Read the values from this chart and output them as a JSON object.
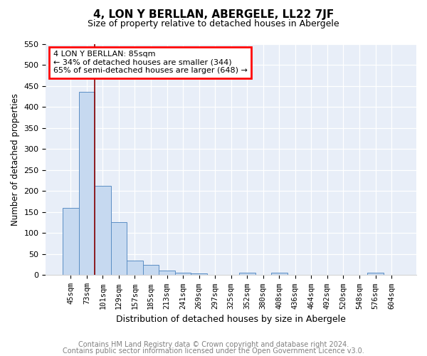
{
  "title": "4, LON Y BERLLAN, ABERGELE, LL22 7JF",
  "subtitle": "Size of property relative to detached houses in Abergele",
  "xlabel": "Distribution of detached houses by size in Abergele",
  "ylabel": "Number of detached properties",
  "categories": [
    "45sqm",
    "73sqm",
    "101sqm",
    "129sqm",
    "157sqm",
    "185sqm",
    "213sqm",
    "241sqm",
    "269sqm",
    "297sqm",
    "325sqm",
    "352sqm",
    "380sqm",
    "408sqm",
    "436sqm",
    "464sqm",
    "492sqm",
    "520sqm",
    "548sqm",
    "576sqm",
    "604sqm"
  ],
  "values": [
    160,
    435,
    213,
    126,
    35,
    25,
    11,
    5,
    4,
    0,
    0,
    5,
    0,
    5,
    0,
    0,
    0,
    0,
    0,
    5,
    0
  ],
  "bar_color": "#c6d9f0",
  "bar_edge_color": "#5b8ec4",
  "red_line_x": 1.5,
  "annotation_title": "4 LON Y BERLLAN: 85sqm",
  "annotation_line1": "← 34% of detached houses are smaller (344)",
  "annotation_line2": "65% of semi-detached houses are larger (648) →",
  "ylim": [
    0,
    550
  ],
  "yticks": [
    0,
    50,
    100,
    150,
    200,
    250,
    300,
    350,
    400,
    450,
    500,
    550
  ],
  "footer1": "Contains HM Land Registry data © Crown copyright and database right 2024.",
  "footer2": "Contains public sector information licensed under the Open Government Licence v3.0.",
  "background_color": "#e8eef8"
}
